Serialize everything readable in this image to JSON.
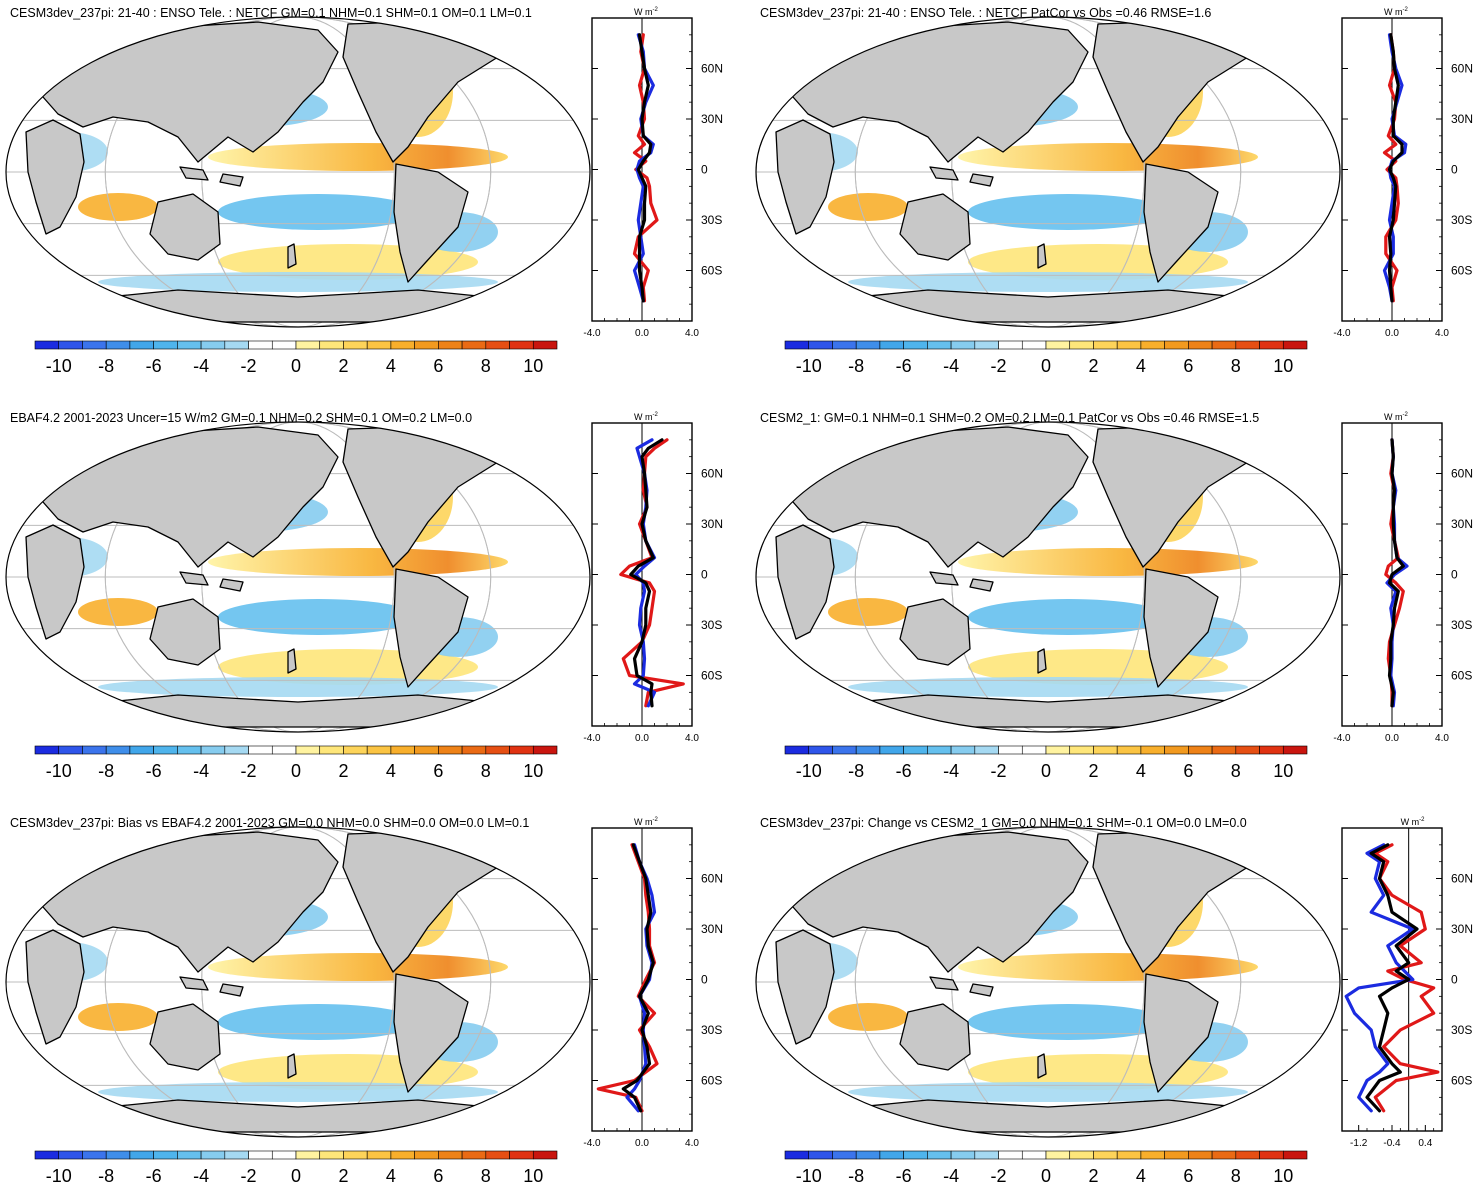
{
  "chart_data": {
    "type": "map-panels",
    "colorbar": {
      "colors": [
        "#1B2BE0",
        "#2F55EA",
        "#3B74EC",
        "#3F8EEA",
        "#41A6EA",
        "#4FB4EC",
        "#65C0EE",
        "#86CCEF",
        "#A5D9F2",
        "#FFFFFF",
        "#FFFFFF",
        "#FFF3A0",
        "#FEE67A",
        "#FDD45A",
        "#FBC443",
        "#F8AF2C",
        "#F29A1F",
        "#EE8217",
        "#EA6A14",
        "#E64F13",
        "#E03212",
        "#C9150F"
      ],
      "tick_labels": [
        "-10",
        "-8",
        "-6",
        "-4",
        "-2",
        "0",
        "2",
        "4",
        "6",
        "8",
        "10"
      ]
    },
    "zonal_axis": {
      "unit_label": "W m",
      "unit_sup": "-2",
      "lat_labels": [
        "60N",
        "30N",
        "0",
        "30S",
        "60S"
      ],
      "lat_values": [
        60,
        30,
        0,
        -30,
        -60
      ]
    },
    "panels": [
      {
        "title": "CESM3dev_237pi: 21-40 : ENSO Tele. : NETCF GM=0.1 NHM=0.1 SHM=0.1 OM=0.1 LM=0.1",
        "x_range": [
          -4,
          4
        ],
        "x_tick_labels": [
          "-4.0",
          "0.0",
          "4.0"
        ],
        "series": [
          {
            "name": "red",
            "color": "#E01818",
            "lat": [
              80,
              70,
              60,
              50,
              40,
              30,
              20,
              15,
              10,
              5,
              0,
              -5,
              -10,
              -20,
              -30,
              -40,
              -50,
              -60,
              -70,
              -78
            ],
            "values": [
              0.1,
              -0.1,
              0.2,
              -0.2,
              0.1,
              0.2,
              -0.3,
              0.2,
              -0.6,
              0.3,
              -0.5,
              0.4,
              0.6,
              0.7,
              1.2,
              -0.3,
              -0.6,
              0.5,
              0.1,
              0.2
            ]
          },
          {
            "name": "blue",
            "color": "#1B2BE0",
            "lat": [
              80,
              70,
              60,
              50,
              40,
              30,
              20,
              15,
              10,
              5,
              0,
              -5,
              -10,
              -20,
              -30,
              -40,
              -50,
              -60,
              -70,
              -78
            ],
            "values": [
              -0.3,
              0.1,
              0.2,
              0.9,
              0.3,
              -0.1,
              0.1,
              0.9,
              0.7,
              -0.2,
              -0.4,
              -0.2,
              0.1,
              -0.1,
              -0.3,
              -0.1,
              0.1,
              -0.6,
              -0.2,
              0.1
            ]
          },
          {
            "name": "black",
            "color": "#000000",
            "lat": [
              80,
              70,
              60,
              50,
              40,
              30,
              20,
              15,
              10,
              5,
              0,
              -5,
              -10,
              -20,
              -30,
              -40,
              -50,
              -60,
              -70,
              -78
            ],
            "values": [
              -0.2,
              0.0,
              0.2,
              0.5,
              0.2,
              0.0,
              0.1,
              0.7,
              0.6,
              0.1,
              -0.3,
              0.0,
              0.3,
              0.2,
              0.2,
              -0.2,
              -0.2,
              -0.2,
              0.0,
              0.1
            ]
          }
        ]
      },
      {
        "title": "CESM3dev_237pi: 21-40 : ENSO Tele. : NETCF PatCor vs Obs =0.46 RMSE=1.6",
        "x_range": [
          -4,
          4
        ],
        "x_tick_labels": [
          "-4.0",
          "0.0",
          "4.0"
        ],
        "series": [
          {
            "name": "red",
            "color": "#E01818",
            "lat": [
              80,
              70,
              60,
              50,
              40,
              30,
              20,
              15,
              10,
              5,
              0,
              -5,
              -10,
              -20,
              -30,
              -40,
              -50,
              -60,
              -70,
              -78
            ],
            "values": [
              -0.1,
              0.1,
              0.2,
              -0.2,
              0.3,
              0.2,
              -0.3,
              0.3,
              -0.6,
              0.3,
              -0.4,
              0.3,
              0.4,
              0.5,
              0.3,
              -0.5,
              -0.5,
              0.4,
              0.0,
              0.1
            ]
          },
          {
            "name": "blue",
            "color": "#1B2BE0",
            "lat": [
              80,
              70,
              60,
              50,
              40,
              30,
              20,
              15,
              10,
              5,
              0,
              -5,
              -10,
              -20,
              -30,
              -40,
              -50,
              -60,
              -70,
              -78
            ],
            "values": [
              -0.2,
              0.0,
              0.3,
              0.8,
              0.4,
              0.0,
              0.2,
              1.1,
              1.0,
              0.0,
              -0.2,
              -0.1,
              0.2,
              0.0,
              -0.2,
              0.1,
              0.1,
              -0.6,
              -0.2,
              0.0
            ]
          },
          {
            "name": "black",
            "color": "#000000",
            "lat": [
              80,
              70,
              60,
              50,
              40,
              30,
              20,
              15,
              10,
              5,
              0,
              -5,
              -10,
              -20,
              -30,
              -40,
              -50,
              -60,
              -70,
              -78
            ],
            "values": [
              -0.1,
              0.1,
              0.2,
              0.5,
              0.3,
              0.1,
              0.1,
              0.8,
              0.8,
              0.1,
              -0.2,
              0.1,
              0.3,
              0.2,
              0.1,
              -0.2,
              -0.1,
              -0.2,
              -0.1,
              0.0
            ]
          }
        ]
      },
      {
        "title": "EBAF4.2 2001-2023 Uncer=15 W/m2 GM=0.1 NHM=0.2 SHM=0.1 OM=0.2 LM=0.0",
        "x_range": [
          -4,
          4
        ],
        "x_tick_labels": [
          "-4.0",
          "0.0",
          "4.0"
        ],
        "series": [
          {
            "name": "red",
            "color": "#E01818",
            "lat": [
              80,
              75,
              70,
              60,
              50,
              40,
              30,
              20,
              10,
              5,
              0,
              -5,
              -10,
              -20,
              -30,
              -40,
              -50,
              -60,
              -65,
              -70,
              -78
            ],
            "values": [
              2.0,
              1.0,
              0.3,
              0.2,
              0.1,
              0.4,
              -0.2,
              0.3,
              0.8,
              -1.0,
              -1.7,
              0.6,
              1.0,
              0.8,
              0.6,
              0.0,
              -1.5,
              -1.0,
              3.3,
              0.5,
              0.3
            ]
          },
          {
            "name": "blue",
            "color": "#1B2BE0",
            "lat": [
              80,
              75,
              70,
              60,
              50,
              40,
              30,
              20,
              10,
              5,
              0,
              -5,
              -10,
              -20,
              -30,
              -40,
              -50,
              -60,
              -65,
              -70,
              -78
            ],
            "values": [
              0.8,
              -0.4,
              -0.2,
              0.2,
              0.4,
              0.3,
              0.1,
              0.3,
              1.0,
              0.2,
              -0.5,
              0.1,
              0.2,
              -0.1,
              -0.2,
              0.1,
              0.2,
              0.1,
              -0.6,
              1.0,
              0.5
            ]
          },
          {
            "name": "black",
            "color": "#000000",
            "lat": [
              80,
              75,
              70,
              60,
              50,
              40,
              30,
              20,
              10,
              5,
              0,
              -5,
              -10,
              -20,
              -30,
              -40,
              -50,
              -60,
              -65,
              -70,
              -78
            ],
            "values": [
              1.6,
              0.5,
              0.0,
              0.2,
              0.3,
              0.4,
              0.0,
              0.3,
              0.9,
              -0.3,
              -0.9,
              0.3,
              0.6,
              0.3,
              0.3,
              0.0,
              -0.6,
              -0.4,
              0.8,
              0.7,
              0.8
            ]
          }
        ]
      },
      {
        "title": "CESM2_1: GM=0.1 NHM=0.1 SHM=0.2 OM=0.2 LM=0.1 PatCor vs Obs =0.46 RMSE=1.5",
        "x_range": [
          -4,
          4
        ],
        "x_tick_labels": [
          "-4.0",
          "0.0",
          "4.0"
        ],
        "series": [
          {
            "name": "red",
            "color": "#E01818",
            "lat": [
              80,
              70,
              60,
              50,
              40,
              30,
              20,
              10,
              5,
              0,
              -5,
              -10,
              -20,
              -30,
              -40,
              -50,
              -60,
              -70,
              -78
            ],
            "values": [
              0.0,
              0.1,
              -0.1,
              0.2,
              0.1,
              -0.1,
              0.2,
              0.5,
              -0.3,
              -0.5,
              0.3,
              0.9,
              0.6,
              0.2,
              -0.2,
              -0.3,
              -0.1,
              0.0,
              0.0
            ]
          },
          {
            "name": "blue",
            "color": "#1B2BE0",
            "lat": [
              80,
              70,
              60,
              50,
              40,
              30,
              20,
              10,
              5,
              0,
              -5,
              -10,
              -20,
              -30,
              -40,
              -50,
              -60,
              -70,
              -78
            ],
            "values": [
              0.0,
              0.1,
              0.0,
              0.3,
              0.1,
              0.2,
              0.2,
              0.4,
              1.2,
              0.2,
              -0.4,
              0.3,
              -0.1,
              0.1,
              0.0,
              0.0,
              -0.1,
              0.2,
              0.1
            ]
          },
          {
            "name": "black",
            "color": "#000000",
            "lat": [
              80,
              70,
              60,
              50,
              40,
              30,
              20,
              10,
              5,
              0,
              -5,
              -10,
              -20,
              -30,
              -40,
              -50,
              -60,
              -70,
              -78
            ],
            "values": [
              0.0,
              0.1,
              0.0,
              0.2,
              0.1,
              0.1,
              0.2,
              0.4,
              0.9,
              0.0,
              -0.2,
              0.5,
              0.2,
              0.1,
              -0.1,
              -0.1,
              -0.2,
              0.1,
              0.0
            ]
          }
        ]
      },
      {
        "title": "CESM3dev_237pi: Bias vs EBAF4.2 2001-2023 GM=0.0 NHM=0.0 SHM=0.0 OM=0.0 LM=0.1",
        "x_range": [
          -4,
          4
        ],
        "x_tick_labels": [
          "-4.0",
          "0.0",
          "4.0"
        ],
        "series": [
          {
            "name": "red",
            "color": "#E01818",
            "lat": [
              80,
              70,
              60,
              50,
              40,
              30,
              20,
              10,
              0,
              -10,
              -20,
              -30,
              -40,
              -50,
              -60,
              -65,
              -70,
              -78
            ],
            "values": [
              -0.8,
              -0.3,
              0.2,
              0.3,
              0.5,
              0.6,
              0.6,
              1.0,
              0.3,
              -0.3,
              1.0,
              -0.2,
              0.6,
              1.2,
              -0.6,
              -3.5,
              -0.5,
              0.0
            ]
          },
          {
            "name": "blue",
            "color": "#1B2BE0",
            "lat": [
              80,
              70,
              60,
              50,
              40,
              30,
              20,
              10,
              0,
              -10,
              -20,
              -30,
              -40,
              -50,
              -60,
              -65,
              -70,
              -78
            ],
            "values": [
              -0.6,
              -0.2,
              0.4,
              0.8,
              1.0,
              0.3,
              0.4,
              0.8,
              0.6,
              -0.2,
              0.2,
              0.1,
              0.2,
              0.3,
              -0.2,
              -0.6,
              -1.2,
              -0.3
            ]
          },
          {
            "name": "black",
            "color": "#000000",
            "lat": [
              80,
              70,
              60,
              50,
              40,
              30,
              20,
              10,
              0,
              -10,
              -20,
              -30,
              -40,
              -50,
              -60,
              -65,
              -70,
              -78
            ],
            "values": [
              -0.7,
              -0.2,
              0.3,
              0.5,
              0.7,
              0.4,
              0.5,
              0.9,
              0.5,
              -0.2,
              0.5,
              0.0,
              0.4,
              0.6,
              -0.4,
              -1.5,
              -0.6,
              -0.1
            ]
          }
        ]
      },
      {
        "title": "CESM3dev_237pi: Change vs CESM2_1 GM=0.0 NHM=0.1 SHM=-0.1 OM=0.0 LM=0.0",
        "x_range": [
          -1.6,
          0.8
        ],
        "x_tick_labels": [
          "-1.2",
          "-0.4",
          "0.4"
        ],
        "x_tick_values": [
          -1.2,
          -0.4,
          0.4
        ],
        "series": [
          {
            "name": "red",
            "color": "#E01818",
            "lat": [
              80,
              75,
              70,
              60,
              50,
              40,
              30,
              20,
              10,
              5,
              0,
              -5,
              -10,
              -20,
              -30,
              -40,
              -50,
              -55,
              -60,
              -70,
              -78
            ],
            "values": [
              -0.4,
              -0.8,
              -0.5,
              -0.7,
              -0.4,
              0.3,
              0.4,
              -0.2,
              0.3,
              -0.5,
              -0.1,
              0.6,
              0.3,
              0.6,
              -0.2,
              -0.6,
              -0.2,
              0.7,
              -0.3,
              -0.8,
              -0.6
            ]
          },
          {
            "name": "blue",
            "color": "#1B2BE0",
            "lat": [
              80,
              75,
              70,
              60,
              50,
              40,
              30,
              20,
              10,
              5,
              0,
              -5,
              -10,
              -20,
              -30,
              -40,
              -50,
              -55,
              -60,
              -70,
              -78
            ],
            "values": [
              -0.6,
              -1.0,
              -0.7,
              -0.8,
              -0.6,
              -0.9,
              0.1,
              -0.5,
              -0.3,
              -0.1,
              0.1,
              -1.2,
              -1.5,
              -1.3,
              -0.9,
              -0.8,
              -0.5,
              -0.7,
              -1.0,
              -1.2,
              -0.9
            ]
          },
          {
            "name": "black",
            "color": "#000000",
            "lat": [
              80,
              75,
              70,
              60,
              50,
              40,
              30,
              20,
              10,
              5,
              0,
              -5,
              -10,
              -20,
              -30,
              -40,
              -50,
              -55,
              -60,
              -70,
              -78
            ],
            "values": [
              -0.5,
              -0.9,
              -0.6,
              -0.7,
              -0.5,
              -0.4,
              0.2,
              -0.3,
              0.0,
              -0.3,
              0.0,
              -0.4,
              -0.7,
              -0.5,
              -0.6,
              -0.7,
              -0.4,
              -0.2,
              -0.7,
              -1.0,
              -0.7
            ]
          }
        ]
      }
    ]
  }
}
